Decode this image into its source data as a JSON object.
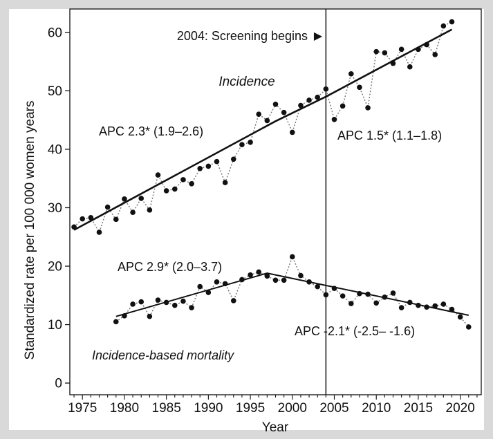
{
  "chart_data": {
    "type": "line",
    "xlabel": "Year",
    "ylabel": "Standardized rate per 100 000 women years",
    "xlim": [
      1973.5,
      2022.5
    ],
    "ylim": [
      -2,
      64
    ],
    "xticks": [
      1975,
      1980,
      1985,
      1990,
      1995,
      2000,
      2005,
      2010,
      2015,
      2020
    ],
    "yticks": [
      0,
      10,
      20,
      30,
      40,
      50,
      60
    ],
    "vline": {
      "x": 2004,
      "label": "2004: Screening begins",
      "marker": "▶"
    },
    "series": [
      {
        "name": "Incidence",
        "label": "Incidence",
        "observed": {
          "x": [
            1974,
            1975,
            1976,
            1977,
            1978,
            1979,
            1980,
            1981,
            1982,
            1983,
            1984,
            1985,
            1986,
            1987,
            1988,
            1989,
            1990,
            1991,
            1992,
            1993,
            1994,
            1995,
            1996,
            1997,
            1998,
            1999,
            2000,
            2001,
            2002,
            2003,
            2004,
            2005,
            2006,
            2007,
            2008,
            2009,
            2010,
            2011,
            2012,
            2013,
            2014,
            2015,
            2016,
            2017,
            2018,
            2019
          ],
          "y": [
            26.7,
            28.1,
            28.3,
            25.8,
            30.1,
            28.0,
            31.5,
            29.2,
            31.6,
            29.6,
            35.6,
            32.9,
            33.2,
            34.8,
            34.1,
            36.7,
            37.1,
            37.9,
            34.3,
            38.3,
            40.8,
            41.2,
            46.0,
            44.9,
            47.7,
            46.3,
            42.9,
            47.5,
            48.4,
            48.9,
            50.3,
            45.1,
            47.4,
            52.9,
            50.6,
            47.1,
            56.7,
            56.5,
            54.7,
            57.1,
            54.1,
            57.1,
            57.9,
            56.2,
            61.1,
            61.8
          ]
        },
        "trend": {
          "x": [
            1974,
            1998,
            2004,
            2019
          ],
          "y": [
            26.2,
            44.8,
            49.0,
            60.5
          ]
        },
        "apc": [
          {
            "label": "APC 2.3* (1.9–2.6)"
          },
          {
            "label": "APC 1.5* (1.1–1.8)"
          }
        ]
      },
      {
        "name": "Incidence-based mortality",
        "label": "Incidence-based mortality",
        "observed": {
          "x": [
            1979,
            1980,
            1981,
            1982,
            1983,
            1984,
            1985,
            1986,
            1987,
            1988,
            1989,
            1990,
            1991,
            1992,
            1993,
            1994,
            1995,
            1996,
            1997,
            1998,
            1999,
            2000,
            2001,
            2002,
            2003,
            2004,
            2005,
            2006,
            2007,
            2008,
            2009,
            2010,
            2011,
            2012,
            2013,
            2014,
            2015,
            2016,
            2017,
            2018,
            2019,
            2020,
            2021
          ],
          "y": [
            10.5,
            11.5,
            13.5,
            13.9,
            11.4,
            14.2,
            13.8,
            13.3,
            14.0,
            12.9,
            16.5,
            15.5,
            17.3,
            17.0,
            14.1,
            17.7,
            18.5,
            19.0,
            18.3,
            17.6,
            17.6,
            21.6,
            18.4,
            17.3,
            16.5,
            15.1,
            16.2,
            14.9,
            13.6,
            15.3,
            15.2,
            13.7,
            14.7,
            15.4,
            12.9,
            13.8,
            13.3,
            13.0,
            13.2,
            13.5,
            12.6,
            11.3,
            9.6
          ]
        },
        "trend": {
          "x": [
            1979,
            1997,
            2021
          ],
          "y": [
            11.4,
            18.8,
            11.6
          ]
        },
        "apc": [
          {
            "label": "APC 2.9* (2.0–3.7)"
          },
          {
            "label": "APC -2.1* (-2.5– -1.6)"
          }
        ]
      }
    ]
  }
}
